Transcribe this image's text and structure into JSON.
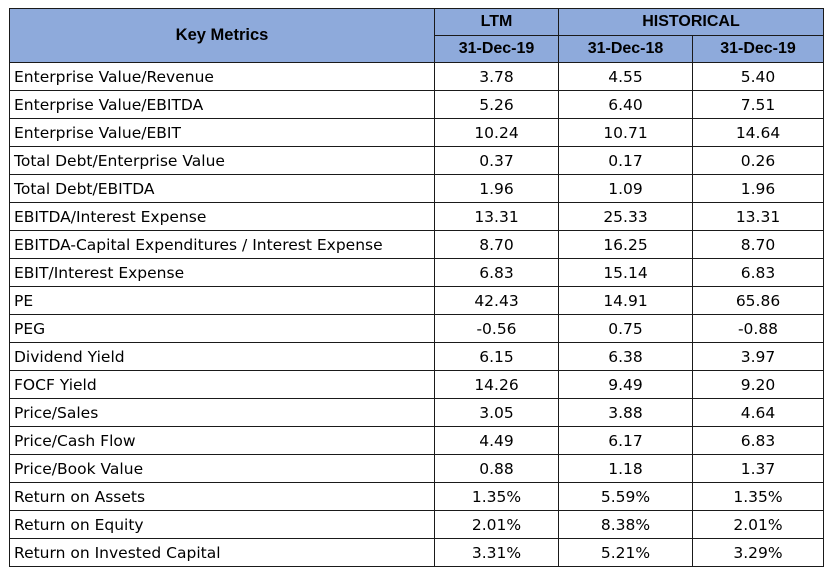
{
  "header": {
    "key_metrics": "Key Metrics",
    "ltm": "LTM",
    "historical": "HISTORICAL",
    "dates": [
      "31-Dec-19",
      "31-Dec-18",
      "31-Dec-19"
    ]
  },
  "colors": {
    "header_fill": "#8eaadb",
    "border": "#1a1a1a"
  },
  "rows": [
    {
      "label": "Enterprise Value/Revenue",
      "values": [
        "3.78",
        "4.55",
        "5.40"
      ]
    },
    {
      "label": "Enterprise Value/EBITDA",
      "values": [
        "5.26",
        "6.40",
        "7.51"
      ]
    },
    {
      "label": "Enterprise Value/EBIT",
      "values": [
        "10.24",
        "10.71",
        "14.64"
      ]
    },
    {
      "label": "Total Debt/Enterprise Value",
      "values": [
        "0.37",
        "0.17",
        "0.26"
      ]
    },
    {
      "label": "Total Debt/EBITDA",
      "values": [
        "1.96",
        "1.09",
        "1.96"
      ]
    },
    {
      "label": "EBITDA/Interest Expense",
      "values": [
        "13.31",
        "25.33",
        "13.31"
      ]
    },
    {
      "label": "EBITDA-Capital Expenditures / Interest Expense",
      "values": [
        "8.70",
        "16.25",
        "8.70"
      ]
    },
    {
      "label": "EBIT/Interest Expense",
      "values": [
        "6.83",
        "15.14",
        "6.83"
      ]
    },
    {
      "label": "PE",
      "values": [
        "42.43",
        "14.91",
        "65.86"
      ]
    },
    {
      "label": "PEG",
      "values": [
        "-0.56",
        "0.75",
        "-0.88"
      ]
    },
    {
      "label": "Dividend Yield",
      "values": [
        "6.15",
        "6.38",
        "3.97"
      ]
    },
    {
      "label": "FOCF Yield",
      "values": [
        "14.26",
        "9.49",
        "9.20"
      ]
    },
    {
      "label": "Price/Sales",
      "values": [
        "3.05",
        "3.88",
        "4.64"
      ]
    },
    {
      "label": "Price/Cash Flow",
      "values": [
        "4.49",
        "6.17",
        "6.83"
      ]
    },
    {
      "label": "Price/Book Value",
      "values": [
        "0.88",
        "1.18",
        "1.37"
      ]
    },
    {
      "label": "Return on Assets",
      "values": [
        "1.35%",
        "5.59%",
        "1.35%"
      ]
    },
    {
      "label": "Return on Equity",
      "values": [
        "2.01%",
        "8.38%",
        "2.01%"
      ]
    },
    {
      "label": "Return on Invested Capital",
      "values": [
        "3.31%",
        "5.21%",
        "3.29%"
      ]
    }
  ]
}
